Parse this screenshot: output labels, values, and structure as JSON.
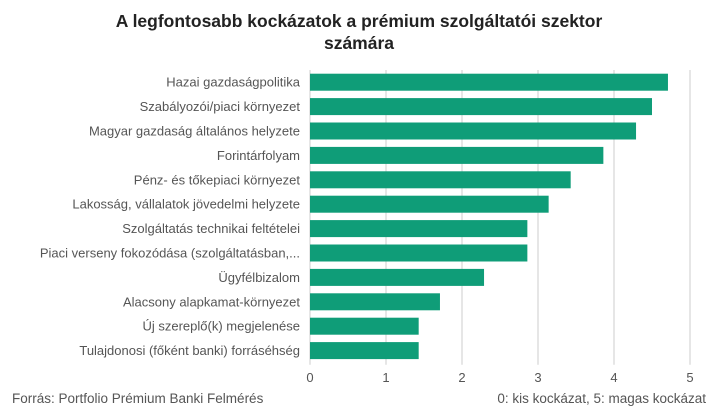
{
  "chart_data": {
    "type": "bar",
    "orientation": "horizontal",
    "title": "A legfontosabb kockázatok a prémium szolgáltatói szektor számára",
    "title_lines": [
      "A legfontosabb kockázatok a prémium szolgáltatói szektor",
      "számára"
    ],
    "categories": [
      "Hazai gazdaságpolitika",
      "Szabályozói/piaci környezet",
      "Magyar gazdaság általános helyzete",
      "Forintárfolyam",
      "Pénz- és tőkepiaci környezet",
      "Lakosság, vállalatok jövedelmi helyzete",
      "Szolgáltatás technikai feltételei",
      "Piaci verseny fokozódása (szolgáltatásban,...",
      "Ügyfélbizalom",
      "Alacsony alapkamat-környezet",
      "Új szereplő(k) megjelenése",
      "Tulajdonosi (főként banki) forráséhség"
    ],
    "values": [
      4.71,
      4.5,
      4.29,
      3.86,
      3.43,
      3.14,
      2.86,
      2.86,
      2.29,
      1.71,
      1.43,
      1.43
    ],
    "xlim": [
      0,
      5
    ],
    "xticks": [
      "0",
      "1",
      "2",
      "3",
      "4",
      "5"
    ],
    "grid": true,
    "bar_color": "#0f9d78",
    "grid_color": "#cccccc",
    "legend": "none"
  },
  "footer": {
    "source": "Forrás: Portfolio Prémium Banki Felmérés",
    "scale_note": "0: kis kockázat, 5: magas kockázat"
  }
}
